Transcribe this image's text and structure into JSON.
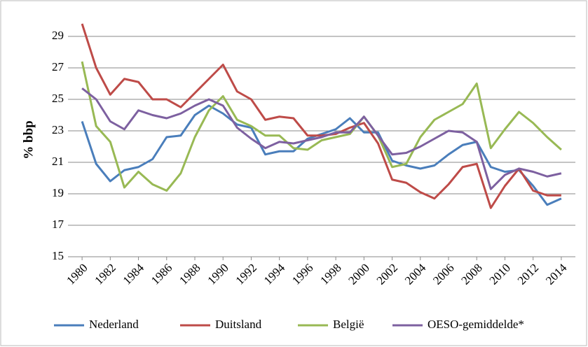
{
  "chart_data": {
    "type": "line",
    "y_label": "% bbp",
    "x": [
      1980,
      1981,
      1982,
      1983,
      1984,
      1985,
      1986,
      1987,
      1988,
      1989,
      1990,
      1991,
      1992,
      1993,
      1994,
      1995,
      1996,
      1997,
      1998,
      1999,
      2000,
      2001,
      2002,
      2003,
      2004,
      2005,
      2006,
      2007,
      2008,
      2009,
      2010,
      2011,
      2012,
      2013,
      2014
    ],
    "xlim": [
      1979,
      2015
    ],
    "xticks": [
      1980,
      1982,
      1984,
      1986,
      1988,
      1990,
      1992,
      1994,
      1996,
      1998,
      2000,
      2002,
      2004,
      2006,
      2008,
      2010,
      2012,
      2014
    ],
    "ylim": [
      15,
      31
    ],
    "yticks": [
      15,
      17,
      19,
      21,
      23,
      25,
      27,
      29
    ],
    "grid": true,
    "legend": "bottom",
    "series": [
      {
        "name": "Nederland",
        "color": "#4a7ebb",
        "values": [
          23.6,
          20.9,
          19.8,
          20.5,
          20.7,
          21.2,
          22.6,
          22.7,
          24.0,
          24.6,
          24.1,
          23.4,
          23.2,
          21.5,
          21.7,
          21.7,
          22.5,
          22.8,
          23.1,
          23.8,
          22.9,
          22.9,
          21.1,
          20.8,
          20.6,
          20.8,
          21.5,
          22.1,
          22.3,
          20.7,
          20.4,
          20.5,
          19.5,
          18.3,
          18.7
        ]
      },
      {
        "name": "Duitsland",
        "color": "#be4b48",
        "values": [
          29.8,
          27.0,
          25.3,
          26.3,
          26.1,
          25.0,
          25.0,
          24.5,
          25.4,
          26.3,
          27.2,
          25.5,
          25.0,
          23.7,
          23.9,
          23.8,
          22.7,
          22.7,
          22.8,
          23.2,
          23.5,
          22.2,
          19.9,
          19.7,
          19.1,
          18.7,
          19.6,
          20.7,
          20.9,
          18.1,
          19.5,
          20.6,
          19.2,
          18.9,
          18.9
        ]
      },
      {
        "name": "België",
        "color": "#98b954",
        "values": [
          27.4,
          23.3,
          22.3,
          19.4,
          20.4,
          19.6,
          19.2,
          20.3,
          22.6,
          24.3,
          25.2,
          23.7,
          23.3,
          22.7,
          22.7,
          21.9,
          21.8,
          22.4,
          22.6,
          22.8,
          23.9,
          22.7,
          20.7,
          20.9,
          22.6,
          23.7,
          24.2,
          24.7,
          26.0,
          21.9,
          23.1,
          24.2,
          23.5,
          22.6,
          21.8
        ]
      },
      {
        "name": "OESO-gemiddelde*",
        "color": "#7d60a0",
        "values": [
          25.7,
          25.0,
          23.6,
          23.1,
          24.3,
          24.0,
          23.8,
          24.1,
          24.6,
          25.0,
          24.6,
          23.2,
          22.5,
          21.9,
          22.3,
          22.2,
          22.4,
          22.6,
          22.9,
          22.9,
          23.9,
          22.7,
          21.5,
          21.6,
          22.0,
          22.5,
          23.0,
          22.9,
          22.3,
          19.3,
          20.2,
          20.6,
          20.4,
          20.1,
          20.3
        ]
      }
    ]
  }
}
